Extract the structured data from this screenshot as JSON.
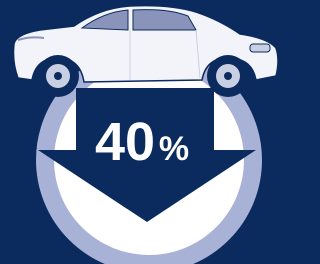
{
  "badge": {
    "number": "40",
    "unit": "%"
  }
}
